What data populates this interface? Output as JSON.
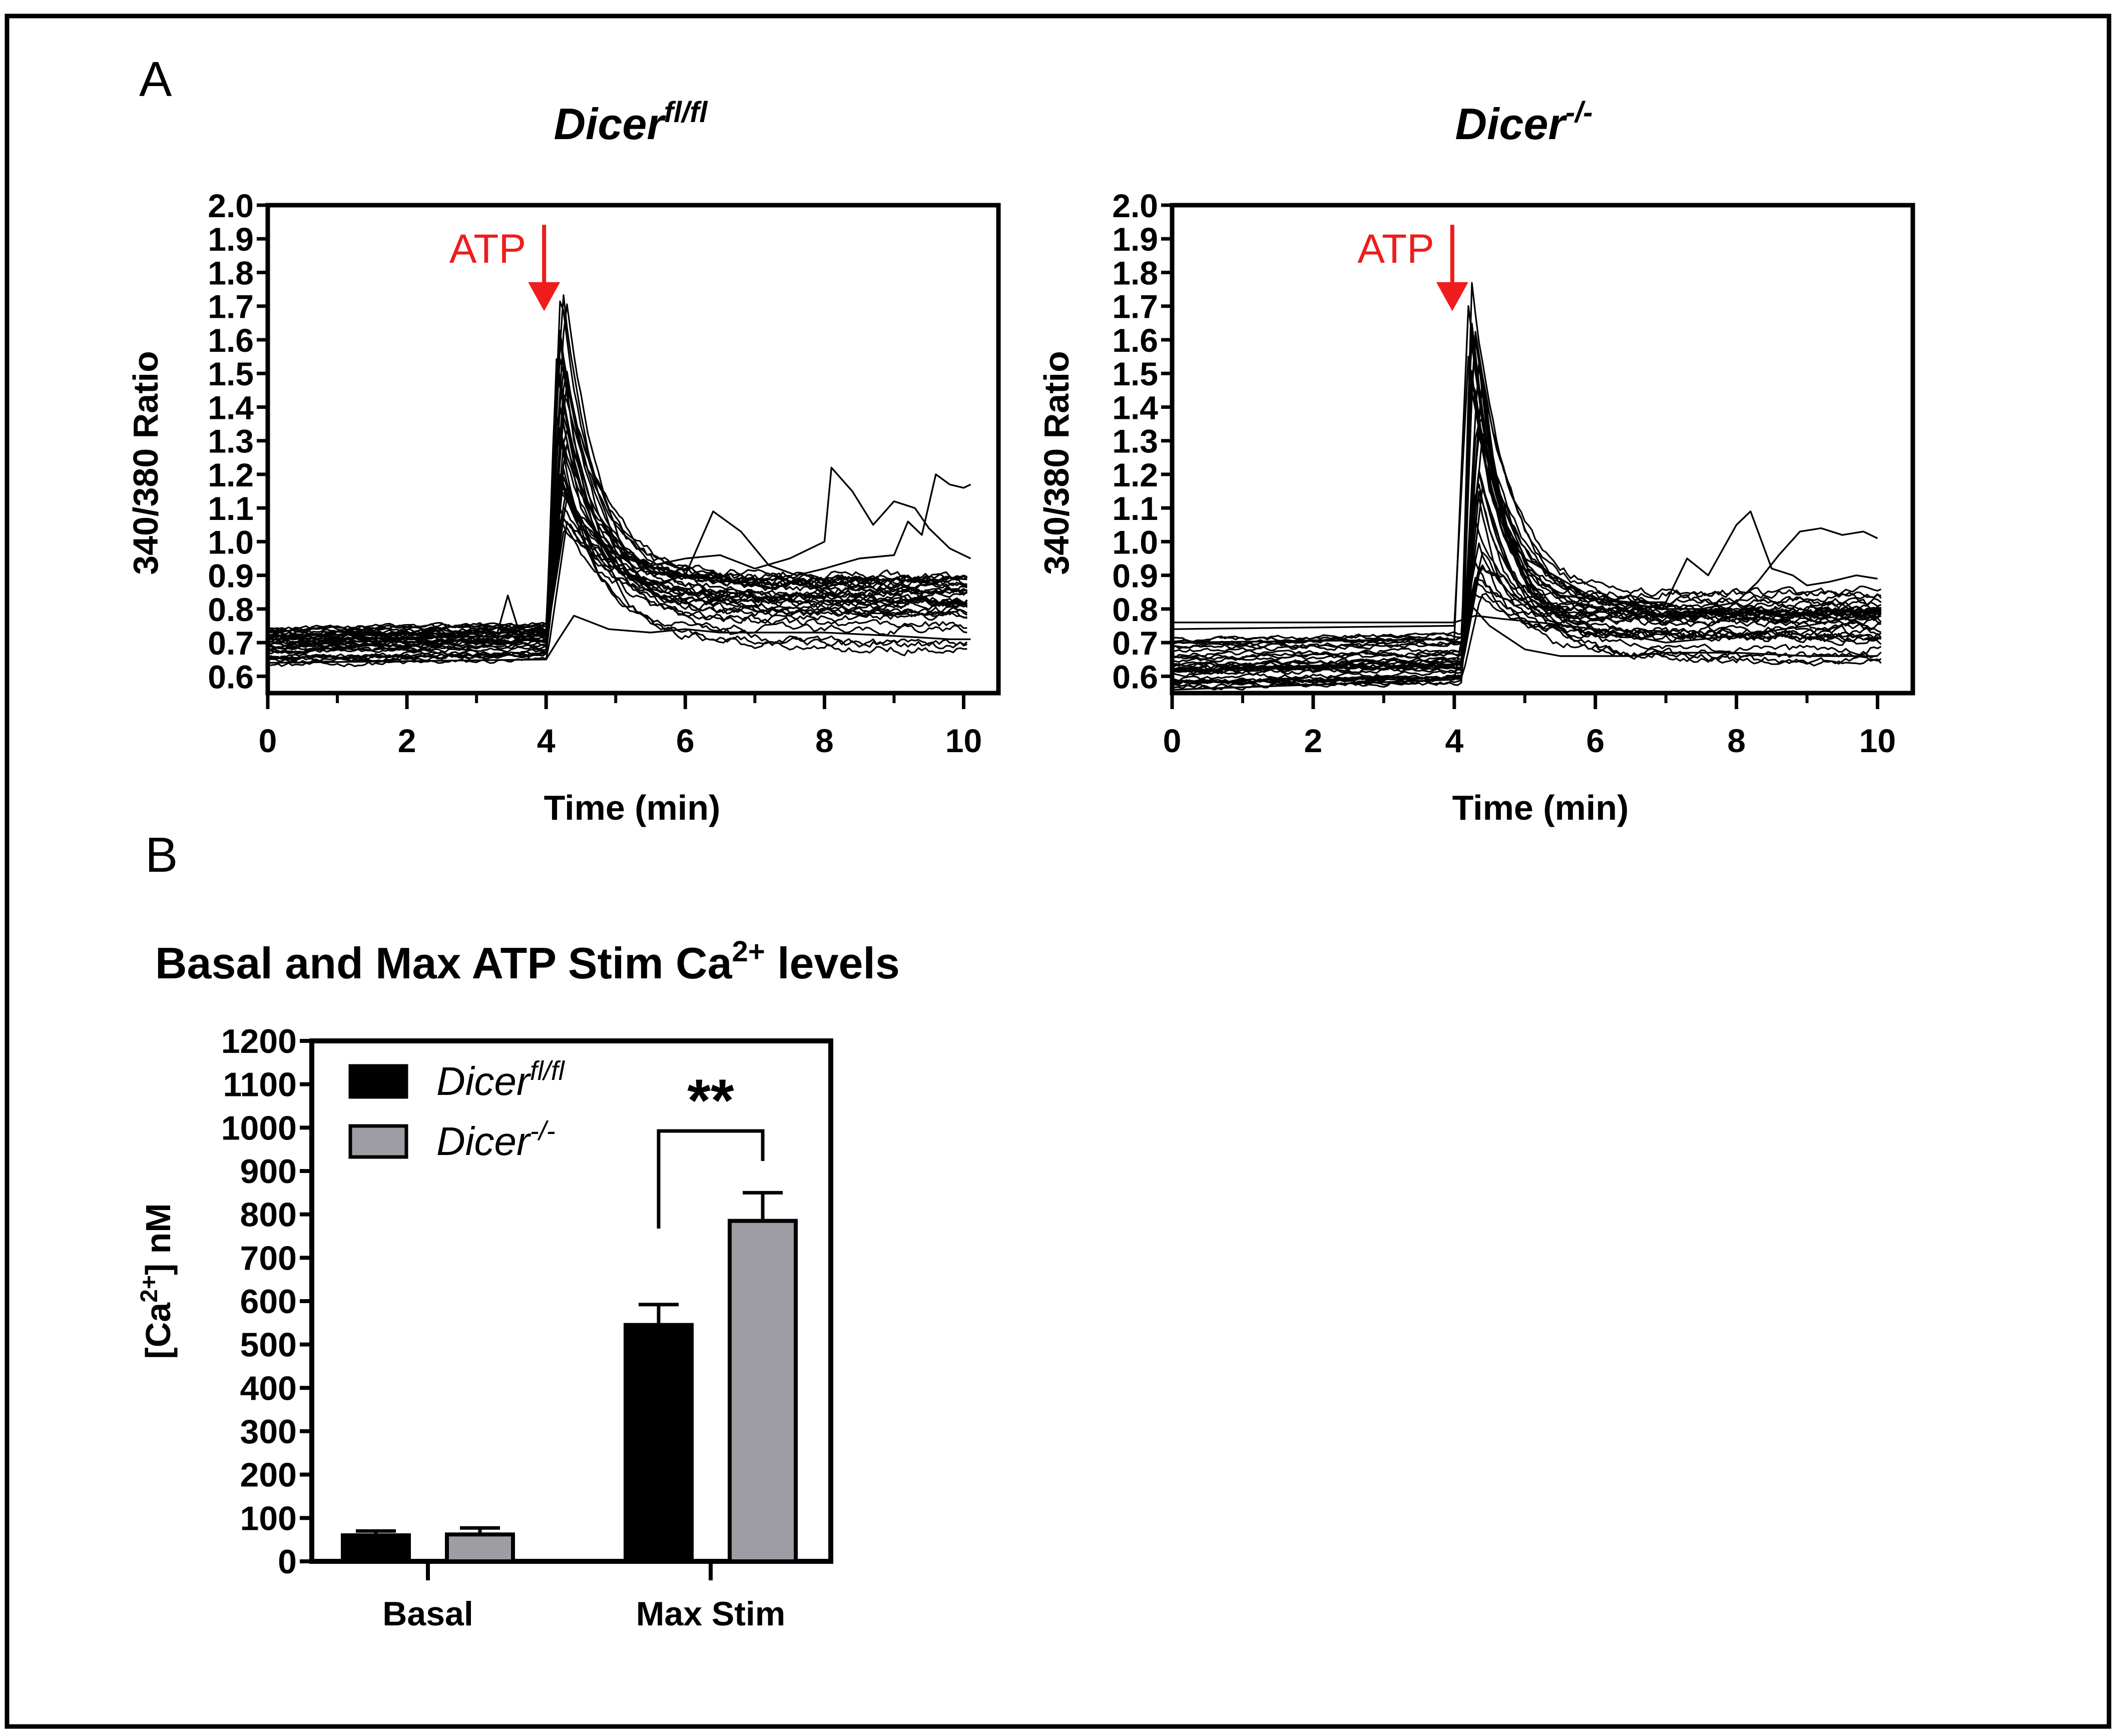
{
  "panel_labels": {
    "a": "A",
    "b": "B"
  },
  "colors": {
    "trace": "#000000",
    "annotation": "#ee1c1c",
    "bar_fl": "#000000",
    "bar_ko": "#9d9da3",
    "frame": "#000000"
  },
  "chart_data": [
    {
      "id": "traces_fl",
      "type": "line",
      "title_base": "Dicer",
      "title_sup": "fl/fl",
      "xlabel": "Time (min)",
      "ylabel": "340/380 Ratio",
      "xlim": [
        0,
        10.5
      ],
      "ylim": [
        0.55,
        2.0
      ],
      "xticks": [
        0,
        2,
        4,
        6,
        8,
        10
      ],
      "xticks_minor": [
        1,
        3,
        5,
        7,
        9
      ],
      "yticks": [
        0.6,
        0.7,
        0.8,
        0.9,
        1.0,
        1.1,
        1.2,
        1.3,
        1.4,
        1.5,
        1.6,
        1.7,
        1.8,
        1.9,
        2.0
      ],
      "yticks_text": [
        "0.6",
        "0.7",
        "0.8",
        "0.9",
        "1.0",
        "1.1",
        "1.2",
        "1.3",
        "1.4",
        "1.5",
        "1.6",
        "1.7",
        "1.8",
        "1.9",
        "2.0"
      ],
      "annotation": {
        "text": "ATP",
        "x": 4.0,
        "y_top": 1.93,
        "y_tip": 1.7
      },
      "stim_time": 4.0,
      "n_traces": 32,
      "baseline_range": [
        0.63,
        0.74
      ],
      "peak_range": [
        1.05,
        1.77
      ],
      "plateau_range": [
        0.69,
        0.92
      ],
      "notable_traces": [
        {
          "x": [
            0,
            3.3,
            3.45,
            3.6,
            4.0,
            4.2,
            4.4,
            4.8,
            5.3,
            6.0,
            6.5,
            7.0,
            7.5,
            8.0,
            8.1,
            8.4,
            8.7,
            9.0,
            9.3,
            9.5,
            9.8,
            10.1
          ],
          "y": [
            0.72,
            0.73,
            0.84,
            0.74,
            0.73,
            1.6,
            1.3,
            1.0,
            0.92,
            0.95,
            0.96,
            0.92,
            0.95,
            1.0,
            1.22,
            1.15,
            1.05,
            1.12,
            1.1,
            1.04,
            0.98,
            0.95
          ]
        },
        {
          "x": [
            0,
            4.0,
            4.2,
            4.5,
            5.0,
            5.5,
            6.0,
            6.4,
            6.8,
            7.2,
            7.6,
            8.0,
            8.5,
            9.0,
            9.2,
            9.4,
            9.6,
            9.8,
            10.0,
            10.1
          ],
          "y": [
            0.71,
            0.72,
            1.4,
            1.1,
            0.92,
            0.87,
            0.9,
            1.09,
            1.03,
            0.93,
            0.9,
            0.92,
            0.95,
            0.96,
            1.06,
            1.02,
            1.2,
            1.17,
            1.16,
            1.17
          ]
        },
        {
          "x": [
            0,
            4.0,
            4.15,
            4.4,
            4.9,
            5.5,
            6.0,
            6.5,
            7.0,
            8.0,
            9.0,
            9.8,
            10.1
          ],
          "y": [
            0.64,
            0.65,
            0.7,
            0.78,
            0.74,
            0.73,
            0.74,
            0.73,
            0.73,
            0.73,
            0.72,
            0.71,
            0.71
          ]
        }
      ]
    },
    {
      "id": "traces_ko",
      "type": "line",
      "title_base": "Dicer",
      "title_sup": "-/-",
      "xlabel": "Time (min)",
      "ylabel": "340/380 Ratio",
      "xlim": [
        0,
        10.5
      ],
      "ylim": [
        0.55,
        2.0
      ],
      "xticks": [
        0,
        2,
        4,
        6,
        8,
        10
      ],
      "xticks_minor": [
        1,
        3,
        5,
        7,
        9
      ],
      "yticks": [
        0.6,
        0.7,
        0.8,
        0.9,
        1.0,
        1.1,
        1.2,
        1.3,
        1.4,
        1.5,
        1.6,
        1.7,
        1.8,
        1.9,
        2.0
      ],
      "yticks_text": [
        "0.6",
        "0.7",
        "0.8",
        "0.9",
        "1.0",
        "1.1",
        "1.2",
        "1.3",
        "1.4",
        "1.5",
        "1.6",
        "1.7",
        "1.8",
        "1.9",
        "2.0"
      ],
      "annotation": {
        "text": "ATP",
        "x": 4.0,
        "y_top": 1.93,
        "y_tip": 1.7
      },
      "stim_time": 4.1,
      "n_traces": 32,
      "baseline_range": [
        0.56,
        0.72
      ],
      "peak_range": [
        0.78,
        1.8
      ],
      "plateau_range": [
        0.66,
        0.84
      ],
      "notable_traces": [
        {
          "x": [
            0,
            4.0,
            4.2,
            4.5,
            5.0,
            5.5,
            6.0,
            6.5,
            7.0,
            7.3,
            7.6,
            8.0,
            8.2,
            8.5,
            8.8,
            9.0,
            9.3,
            9.7,
            10.0
          ],
          "y": [
            0.74,
            0.75,
            1.55,
            1.15,
            0.92,
            0.84,
            0.83,
            0.82,
            0.82,
            0.95,
            0.9,
            1.05,
            1.09,
            0.92,
            0.9,
            0.87,
            0.88,
            0.9,
            0.89
          ]
        },
        {
          "x": [
            0,
            4.0,
            4.2,
            4.5,
            5.0,
            6.0,
            7.0,
            7.5,
            8.0,
            8.3,
            8.6,
            8.9,
            9.2,
            9.5,
            9.8,
            10.0
          ],
          "y": [
            0.7,
            0.71,
            1.7,
            1.2,
            0.95,
            0.83,
            0.8,
            0.8,
            0.82,
            0.88,
            0.96,
            1.03,
            1.04,
            1.02,
            1.03,
            1.01
          ]
        },
        {
          "x": [
            0,
            4.0,
            4.3,
            4.7,
            5.2,
            5.6,
            6.0,
            6.5,
            7.0,
            8.0,
            9.0,
            10.0
          ],
          "y": [
            0.76,
            0.76,
            0.78,
            0.77,
            0.76,
            0.75,
            0.74,
            0.72,
            0.7,
            0.72,
            0.75,
            0.79
          ]
        },
        {
          "x": [
            0,
            4.0,
            4.2,
            4.5,
            5.0,
            5.5,
            6.0,
            6.5,
            7.0,
            8.0,
            9.0,
            10.0
          ],
          "y": [
            0.56,
            0.59,
            0.82,
            0.75,
            0.68,
            0.66,
            0.66,
            0.66,
            0.67,
            0.67,
            0.66,
            0.66
          ]
        }
      ]
    },
    {
      "id": "bars",
      "type": "bar",
      "title_main": "Basal and Max ATP Stim Ca",
      "title_sup": "2+",
      "title_tail": " levels",
      "ylabel_pre": "[Ca",
      "ylabel_sup": "2+",
      "ylabel_post": "] nM",
      "categories": [
        "Basal",
        "Max Stim"
      ],
      "ylim": [
        0,
        1200
      ],
      "yticks": [
        0,
        100,
        200,
        300,
        400,
        500,
        600,
        700,
        800,
        900,
        1000,
        1100,
        1200
      ],
      "yticks_text": [
        "0",
        "100",
        "200",
        "300",
        "400",
        "500",
        "600",
        "700",
        "800",
        "900",
        "1000",
        "1100",
        "1200"
      ],
      "series": [
        {
          "name_base": "Dicer",
          "name_sup": "fl/fl",
          "color": "#000000",
          "values": [
            60,
            545
          ],
          "errors": [
            10,
            47
          ]
        },
        {
          "name_base": "Dicer",
          "name_sup": "-/-",
          "color": "#9d9da3",
          "values": [
            62,
            785
          ],
          "errors": [
            15,
            65
          ]
        }
      ],
      "significance": {
        "label": "**",
        "category": "Max Stim"
      }
    }
  ]
}
